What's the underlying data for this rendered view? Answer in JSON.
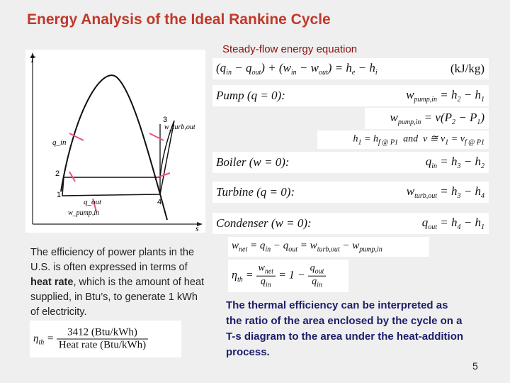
{
  "slide": {
    "title": "Energy Analysis of the Ideal Rankine Cycle",
    "subtitle": "Steady-flow energy equation",
    "page_number": "5"
  },
  "equations": {
    "energy_eq_lhs": "(q",
    "energy_eq_unit": "(kJ/kg)",
    "pump_label": "Pump (q = 0):",
    "pump_eq1": "w_pump,in = h2 − h1",
    "pump_eq2": "w_pump,in = v(P2 − P1)",
    "pump_eq3": "h1 = h_f @ P1 and v ≅ v1 = v_f @ P1",
    "boiler_label": "Boiler (w = 0):",
    "boiler_eq": "q_in = h3 − h2",
    "turbine_label": "Turbine (q = 0):",
    "turbine_eq": "w_turb,out = h3 − h4",
    "condenser_label": "Condenser (w = 0):",
    "condenser_eq": "q_out = h4 − h1",
    "wnet_eq": "w_net = q_in − q_out = w_turb,out − w_pump,in",
    "eta_eq": "η_th = w_net / q_in = 1 − q_out / q_in",
    "heat_rate_eq": "η_th = 3412 (Btu/kWh) / Heat rate (Btu/kWh)"
  },
  "diagram": {
    "axis_y": "T",
    "axis_x": "s",
    "labels": {
      "q_in": "q_in",
      "q_out": "q_out",
      "w_turb_out": "w_turb,out",
      "w_pump_in": "w_pump,in",
      "p1": "1",
      "p2": "2",
      "p3": "3",
      "p4": "4"
    }
  },
  "text": {
    "para1_a": "The efficiency of power plants in the U.S. is often expressed in terms of ",
    "para1_bold": "heat rate",
    "para1_b": ", which is the amount of heat supplied, in Btu’s, to generate 1 kWh of electricity.",
    "para2": "The thermal efficiency can be interpreted as the ratio of the area enclosed by the cycle on a T-s diagram to the area under the heat-addition process."
  },
  "colors": {
    "title": "#c0392b",
    "subtitle": "#8b1010",
    "arrows": "#e8508a",
    "para2": "#1d1d6b"
  }
}
